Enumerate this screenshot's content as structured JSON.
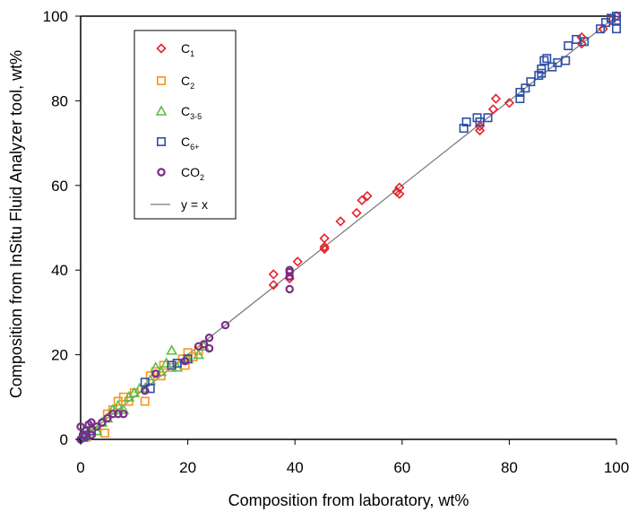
{
  "chart_data": {
    "type": "scatter",
    "xlabel": "Composition from laboratory, wt%",
    "ylabel": "Composition from InSitu Fluid Analyzer tool, wt%",
    "xlim": [
      0,
      100
    ],
    "ylim": [
      0,
      100
    ],
    "x_ticks": [
      0,
      20,
      40,
      60,
      80,
      100
    ],
    "y_ticks": [
      0,
      20,
      40,
      60,
      80,
      100
    ],
    "grid": false,
    "legend_position": "top-left",
    "series": [
      {
        "name": "C₁",
        "label_base": "C",
        "label_sub": "1",
        "marker": "diamond",
        "color": "#e8202a",
        "points": [
          [
            36,
            39
          ],
          [
            36,
            36.5
          ],
          [
            39,
            38
          ],
          [
            40.5,
            42
          ],
          [
            45.5,
            47.5
          ],
          [
            45.5,
            45.5
          ],
          [
            45.5,
            45
          ],
          [
            48.5,
            51.5
          ],
          [
            51.5,
            53.5
          ],
          [
            52.5,
            56.5
          ],
          [
            53.5,
            57.5
          ],
          [
            59,
            58.5
          ],
          [
            59.5,
            59.5
          ],
          [
            59.5,
            58
          ],
          [
            74.5,
            73
          ],
          [
            74.5,
            74
          ],
          [
            77,
            78
          ],
          [
            77.5,
            80.5
          ],
          [
            80,
            79.5
          ],
          [
            93.5,
            93.5
          ],
          [
            93.5,
            95
          ],
          [
            97.5,
            97
          ],
          [
            99,
            99
          ],
          [
            100,
            100
          ]
        ]
      },
      {
        "name": "C₂",
        "label_base": "C",
        "label_sub": "2",
        "marker": "square",
        "color": "#f7941d",
        "points": [
          [
            1,
            0.5
          ],
          [
            2,
            1.5
          ],
          [
            3,
            2
          ],
          [
            4.5,
            1.5
          ],
          [
            5,
            6
          ],
          [
            6,
            7
          ],
          [
            7,
            9
          ],
          [
            8,
            10
          ],
          [
            9,
            9
          ],
          [
            10,
            11
          ],
          [
            12,
            9
          ],
          [
            13,
            15
          ],
          [
            14,
            16
          ],
          [
            15,
            15
          ],
          [
            15.5,
            17.5
          ],
          [
            17,
            17
          ],
          [
            19,
            19
          ],
          [
            19.5,
            17.5
          ],
          [
            20,
            20.5
          ],
          [
            21,
            19.5
          ],
          [
            22,
            21
          ]
        ]
      },
      {
        "name": "C₃₋₅",
        "label_base": "C",
        "label_sub": "3-5",
        "marker": "triangle",
        "color": "#5fbb46",
        "points": [
          [
            1,
            1
          ],
          [
            2,
            3
          ],
          [
            3,
            2
          ],
          [
            4,
            4
          ],
          [
            5,
            5
          ],
          [
            6,
            7
          ],
          [
            7,
            8
          ],
          [
            8,
            7
          ],
          [
            9,
            10
          ],
          [
            10,
            11
          ],
          [
            11,
            12
          ],
          [
            12,
            12
          ],
          [
            13,
            14
          ],
          [
            14,
            17
          ],
          [
            15,
            16
          ],
          [
            16,
            18
          ],
          [
            17,
            21
          ],
          [
            18,
            17
          ],
          [
            20,
            19
          ],
          [
            22,
            20
          ],
          [
            23,
            22
          ]
        ]
      },
      {
        "name": "C₆₊",
        "label_base": "C",
        "label_sub": "6+",
        "marker": "square",
        "color": "#2e4fa6",
        "points": [
          [
            0.5,
            0.5
          ],
          [
            1,
            1
          ],
          [
            2,
            2
          ],
          [
            12,
            13.5
          ],
          [
            13,
            12
          ],
          [
            17,
            17.5
          ],
          [
            18,
            18
          ],
          [
            20,
            19
          ],
          [
            71.5,
            73.5
          ],
          [
            72,
            75
          ],
          [
            74,
            76
          ],
          [
            74.5,
            75
          ],
          [
            76,
            76
          ],
          [
            82,
            80.5
          ],
          [
            82,
            82
          ],
          [
            83,
            83
          ],
          [
            84,
            84.5
          ],
          [
            85.5,
            86
          ],
          [
            86,
            86.5
          ],
          [
            86,
            87.5
          ],
          [
            86.5,
            89.5
          ],
          [
            87,
            90
          ],
          [
            88,
            88
          ],
          [
            89,
            89
          ],
          [
            90.5,
            89.5
          ],
          [
            91,
            93
          ],
          [
            92.5,
            94.5
          ],
          [
            94,
            94
          ],
          [
            97,
            97
          ],
          [
            98,
            98.5
          ],
          [
            99,
            99.5
          ],
          [
            100,
            97
          ],
          [
            100,
            99
          ],
          [
            100,
            100
          ]
        ]
      },
      {
        "name": "CO₂",
        "label_base": "CO",
        "label_sub": "2",
        "marker": "circle",
        "color": "#7b2c8a",
        "points": [
          [
            0,
            0
          ],
          [
            0,
            3
          ],
          [
            0.5,
            1
          ],
          [
            1,
            2
          ],
          [
            1.5,
            3.5
          ],
          [
            2,
            1
          ],
          [
            2,
            4
          ],
          [
            3,
            3
          ],
          [
            4,
            4
          ],
          [
            5,
            5
          ],
          [
            6,
            6
          ],
          [
            7,
            6
          ],
          [
            8,
            6
          ],
          [
            12,
            11.5
          ],
          [
            14,
            15.5
          ],
          [
            19.5,
            18.5
          ],
          [
            22,
            22
          ],
          [
            23,
            22.5
          ],
          [
            24,
            24
          ],
          [
            24,
            21.5
          ],
          [
            27,
            27
          ],
          [
            39,
            35.5
          ],
          [
            39,
            38.5
          ],
          [
            39,
            39.5
          ],
          [
            39,
            40
          ]
        ]
      },
      {
        "name": "y = x",
        "marker": "line",
        "color": "#777777",
        "points": [
          [
            0,
            0
          ],
          [
            100,
            100
          ]
        ]
      }
    ]
  }
}
